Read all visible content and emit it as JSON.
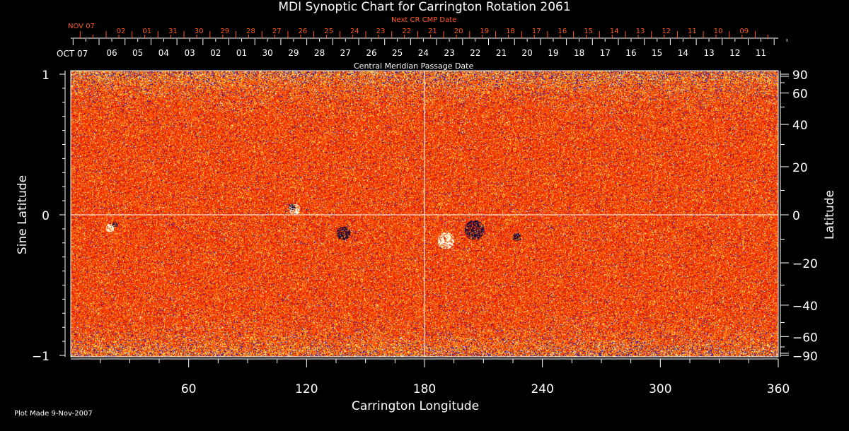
{
  "chart_data": {
    "type": "heatmap",
    "title": "MDI Synoptic Chart for Carrington Rotation 2061",
    "xlabel": "Carrington Longitude",
    "ylabel_left": "Sine Latitude",
    "ylabel_right": "Latitude",
    "xlim": [
      0,
      360
    ],
    "ylim": [
      -1,
      1
    ],
    "x_ticks": [
      60,
      120,
      180,
      240,
      300,
      360
    ],
    "y_ticks_left": [
      {
        "v": 1,
        "label": "1"
      },
      {
        "v": 0,
        "label": "0"
      },
      {
        "v": -1,
        "label": "−1"
      }
    ],
    "y_ticks_right": [
      "90",
      "60",
      "40",
      "20",
      "0",
      "−20",
      "−40",
      "−60",
      "−90"
    ],
    "y_ticks_right_values": [
      90,
      60,
      40,
      20,
      0,
      -20,
      -40,
      -60,
      -90
    ],
    "top_axis": {
      "label": "Central Meridian Passage Date",
      "month_label": "OCT 07",
      "dates": [
        "06",
        "05",
        "04",
        "03",
        "02",
        "01",
        "30",
        "29",
        "28",
        "27",
        "26",
        "25",
        "24",
        "23",
        "22",
        "21",
        "20",
        "19",
        "18",
        "17",
        "16",
        "15",
        "14",
        "13",
        "12",
        "11"
      ]
    },
    "next_cr_axis": {
      "label": "Next CR CMP Date",
      "month_label": "NOV 07",
      "dates": [
        "02",
        "01",
        "31",
        "30",
        "29",
        "28",
        "27",
        "26",
        "25",
        "24",
        "23",
        "22",
        "21",
        "20",
        "19",
        "18",
        "17",
        "16",
        "15",
        "14",
        "13",
        "12",
        "11",
        "10",
        "09"
      ]
    },
    "colors": {
      "base": "#ff4a00",
      "positive": "#ffffc0",
      "negative": "#1010a0",
      "red_axis": "#ff5a1e"
    }
  },
  "footer": "Plot Made  9-Nov-2007"
}
